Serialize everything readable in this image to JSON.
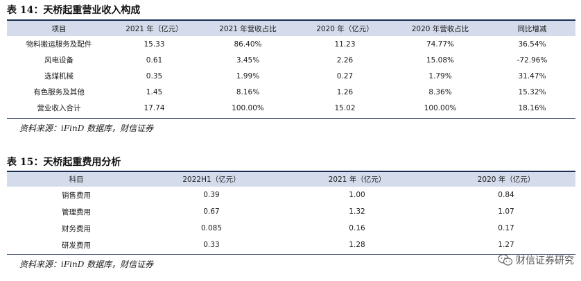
{
  "table1": {
    "title": "表 14：天桥起重营业收入构成",
    "headers": [
      "项目",
      "2021 年（亿元）",
      "2021 年营收占比",
      "2020 年（亿元）",
      "2020 年营收占比",
      "同比增减"
    ],
    "rows": [
      [
        "物料搬运服务及配件",
        "15.33",
        "86.40%",
        "11.23",
        "74.77%",
        "36.54%"
      ],
      [
        "风电设备",
        "0.61",
        "3.45%",
        "2.26",
        "15.08%",
        "-72.96%"
      ],
      [
        "选煤机械",
        "0.35",
        "1.99%",
        "0.27",
        "1.79%",
        "31.47%"
      ],
      [
        "有色服务及其他",
        "1.45",
        "8.16%",
        "1.26",
        "8.36%",
        "15.32%"
      ],
      [
        "营业收入合计",
        "17.74",
        "100.00%",
        "15.02",
        "100.00%",
        "18.16%"
      ]
    ],
    "source": "资料来源：iFinD 数据库，财信证券"
  },
  "table2": {
    "title": "表 15：天桥起重费用分析",
    "headers": [
      "科目",
      "2022H1（亿元）",
      "2021 年（亿元）",
      "2020 年（亿元）"
    ],
    "rows": [
      [
        "销售费用",
        "0.39",
        "1.00",
        "0.84"
      ],
      [
        "管理费用",
        "0.67",
        "1.32",
        "1.07"
      ],
      [
        "财务费用",
        "0.085",
        "0.16",
        "0.17"
      ],
      [
        "研发费用",
        "0.33",
        "1.28",
        "1.27"
      ]
    ],
    "source": "资料来源：iFinD 数据库，财信证券"
  },
  "watermark": {
    "text": "财信证券研究",
    "icon": "wechat-icon"
  },
  "colors": {
    "rule": "#1d2f52",
    "header_band": "#d4dceb"
  }
}
